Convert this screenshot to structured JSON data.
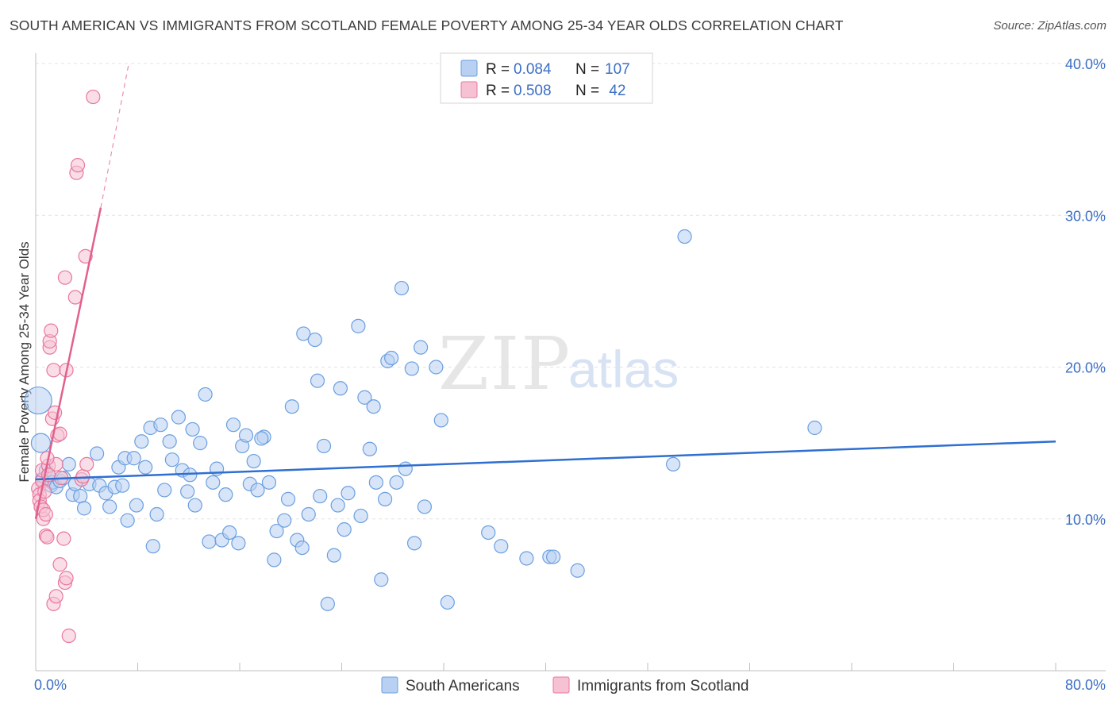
{
  "title": "SOUTH AMERICAN VS IMMIGRANTS FROM SCOTLAND FEMALE POVERTY AMONG 25-34 YEAR OLDS CORRELATION CHART",
  "source": "Source: ZipAtlas.com",
  "watermark": {
    "zip": "ZIP",
    "atlas": "atlas"
  },
  "colors": {
    "blue": "#6a9fe0",
    "blue_fill": "#b8d0f2",
    "blue_line": "#2f6fd0",
    "pink": "#e9779c",
    "pink_fill": "#f6c2d3",
    "pink_line": "#e2608e",
    "tick_text": "#3b6fc4"
  },
  "legend": {
    "rows": [
      {
        "r_label": "R = ",
        "r_value": "0.084",
        "n_label": "N = ",
        "n_value": "107"
      },
      {
        "r_label": "R = ",
        "r_value": "0.508",
        "n_label": "N = ",
        "n_value": " 42"
      }
    ]
  },
  "bottom_legend": [
    "South Americans",
    "Immigrants from Scotland"
  ],
  "chart_data": {
    "type": "scatter",
    "title": "SOUTH AMERICAN VS IMMIGRANTS FROM SCOTLAND FEMALE POVERTY AMONG 25-34 YEAR OLDS CORRELATION CHART",
    "xlabel": "",
    "ylabel": "Female Poverty Among 25-34 Year Olds",
    "xlim": [
      0,
      80
    ],
    "ylim": [
      0,
      40
    ],
    "x_tick_labels": [
      "0.0%",
      "80.0%"
    ],
    "y_tick_labels": [
      "10.0%",
      "20.0%",
      "30.0%",
      "40.0%"
    ],
    "y_ticks": [
      10,
      20,
      30,
      40
    ],
    "series": [
      {
        "name": "South Americans",
        "R": 0.084,
        "N": 107,
        "trend": {
          "x": [
            0,
            80
          ],
          "y": [
            12.6,
            15.1
          ],
          "style": "solid"
        },
        "points": [
          [
            0.2,
            17.8
          ],
          [
            0.4,
            15.0
          ],
          [
            0.5,
            12.6
          ],
          [
            0.8,
            13.2
          ],
          [
            1.0,
            12.9
          ],
          [
            1.2,
            12.2
          ],
          [
            1.3,
            12.4
          ],
          [
            1.6,
            12.1
          ],
          [
            1.9,
            12.5
          ],
          [
            2.2,
            12.7
          ],
          [
            2.6,
            13.6
          ],
          [
            2.9,
            11.6
          ],
          [
            3.1,
            12.3
          ],
          [
            3.5,
            11.5
          ],
          [
            3.8,
            10.7
          ],
          [
            4.2,
            12.3
          ],
          [
            4.8,
            14.3
          ],
          [
            5.0,
            12.2
          ],
          [
            5.5,
            11.7
          ],
          [
            5.8,
            10.8
          ],
          [
            6.2,
            12.1
          ],
          [
            6.5,
            13.4
          ],
          [
            6.8,
            12.2
          ],
          [
            7.0,
            14.0
          ],
          [
            7.2,
            9.9
          ],
          [
            7.7,
            14.0
          ],
          [
            7.9,
            10.9
          ],
          [
            8.3,
            15.1
          ],
          [
            8.6,
            13.4
          ],
          [
            9.0,
            16.0
          ],
          [
            9.2,
            8.2
          ],
          [
            9.5,
            10.3
          ],
          [
            9.8,
            16.2
          ],
          [
            10.1,
            11.9
          ],
          [
            10.5,
            15.1
          ],
          [
            10.7,
            13.9
          ],
          [
            11.2,
            16.7
          ],
          [
            11.5,
            13.2
          ],
          [
            11.9,
            11.8
          ],
          [
            12.1,
            12.9
          ],
          [
            12.3,
            15.9
          ],
          [
            12.5,
            10.9
          ],
          [
            12.9,
            15.0
          ],
          [
            13.3,
            18.2
          ],
          [
            13.6,
            8.5
          ],
          [
            13.9,
            12.4
          ],
          [
            14.2,
            13.3
          ],
          [
            14.6,
            8.6
          ],
          [
            14.9,
            11.6
          ],
          [
            15.2,
            9.1
          ],
          [
            15.5,
            16.2
          ],
          [
            15.9,
            8.4
          ],
          [
            16.2,
            14.8
          ],
          [
            16.5,
            15.5
          ],
          [
            16.8,
            12.3
          ],
          [
            17.1,
            13.8
          ],
          [
            17.4,
            11.9
          ],
          [
            17.9,
            15.4
          ],
          [
            17.7,
            15.3
          ],
          [
            18.3,
            12.4
          ],
          [
            18.7,
            7.3
          ],
          [
            18.9,
            9.2
          ],
          [
            19.5,
            9.9
          ],
          [
            19.8,
            11.3
          ],
          [
            20.1,
            17.4
          ],
          [
            20.5,
            8.6
          ],
          [
            20.9,
            8.1
          ],
          [
            21.0,
            22.2
          ],
          [
            21.4,
            10.3
          ],
          [
            21.9,
            21.8
          ],
          [
            22.1,
            19.1
          ],
          [
            22.3,
            11.5
          ],
          [
            22.6,
            14.8
          ],
          [
            22.9,
            4.4
          ],
          [
            23.4,
            7.6
          ],
          [
            23.7,
            10.9
          ],
          [
            23.9,
            18.6
          ],
          [
            24.2,
            9.3
          ],
          [
            24.5,
            11.7
          ],
          [
            25.3,
            22.7
          ],
          [
            25.5,
            10.2
          ],
          [
            25.8,
            18.0
          ],
          [
            26.2,
            14.6
          ],
          [
            26.5,
            17.4
          ],
          [
            26.7,
            12.4
          ],
          [
            27.1,
            6.0
          ],
          [
            27.4,
            11.3
          ],
          [
            27.6,
            20.4
          ],
          [
            27.9,
            20.6
          ],
          [
            28.3,
            12.4
          ],
          [
            28.7,
            25.2
          ],
          [
            29.0,
            13.3
          ],
          [
            29.5,
            19.9
          ],
          [
            29.7,
            8.4
          ],
          [
            30.2,
            21.3
          ],
          [
            30.5,
            10.8
          ],
          [
            31.4,
            20.0
          ],
          [
            31.8,
            16.5
          ],
          [
            32.3,
            4.5
          ],
          [
            35.5,
            9.1
          ],
          [
            36.5,
            8.2
          ],
          [
            38.5,
            7.4
          ],
          [
            40.3,
            7.5
          ],
          [
            40.6,
            7.5
          ],
          [
            42.5,
            6.6
          ],
          [
            50.0,
            13.6
          ],
          [
            50.9,
            28.6
          ],
          [
            61.1,
            16.0
          ]
        ]
      },
      {
        "name": "Immigrants from Scotland",
        "R": 0.508,
        "N": 42,
        "trend": {
          "x": [
            0,
            5.1
          ],
          "y": [
            10.0,
            30.5
          ],
          "style": "solid",
          "extended_to": [
            7.3,
            40.0
          ]
        },
        "points": [
          [
            0.2,
            12.0
          ],
          [
            0.3,
            11.6
          ],
          [
            0.3,
            11.2
          ],
          [
            0.4,
            10.8
          ],
          [
            0.5,
            12.5
          ],
          [
            0.5,
            13.2
          ],
          [
            0.6,
            10.0
          ],
          [
            0.6,
            10.6
          ],
          [
            0.7,
            11.8
          ],
          [
            0.8,
            10.3
          ],
          [
            0.8,
            8.9
          ],
          [
            0.9,
            8.8
          ],
          [
            1.0,
            13.5
          ],
          [
            1.0,
            12.9
          ],
          [
            1.1,
            21.3
          ],
          [
            1.1,
            21.7
          ],
          [
            1.2,
            22.4
          ],
          [
            1.3,
            16.6
          ],
          [
            1.4,
            4.4
          ],
          [
            1.4,
            19.8
          ],
          [
            1.5,
            17.0
          ],
          [
            1.6,
            13.6
          ],
          [
            1.6,
            4.9
          ],
          [
            1.7,
            15.5
          ],
          [
            1.9,
            15.6
          ],
          [
            1.9,
            7.0
          ],
          [
            2.0,
            12.7
          ],
          [
            2.2,
            8.7
          ],
          [
            2.3,
            5.8
          ],
          [
            2.3,
            25.9
          ],
          [
            2.4,
            19.8
          ],
          [
            2.4,
            6.1
          ],
          [
            2.6,
            2.3
          ],
          [
            3.1,
            24.6
          ],
          [
            3.2,
            32.8
          ],
          [
            3.3,
            33.3
          ],
          [
            3.6,
            12.6
          ],
          [
            3.7,
            12.8
          ],
          [
            3.9,
            27.3
          ],
          [
            4.0,
            13.6
          ],
          [
            4.5,
            37.8
          ],
          [
            0.9,
            14.0
          ]
        ]
      }
    ]
  }
}
